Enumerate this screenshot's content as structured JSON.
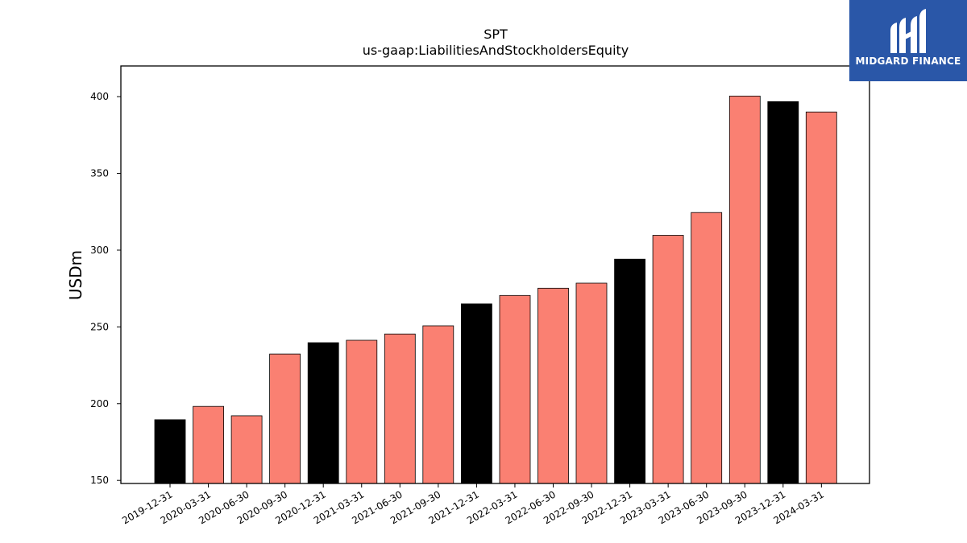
{
  "chart_data": {
    "type": "bar",
    "title": "SPT",
    "subtitle": "us-gaap:LiabilitiesAndStockholdersEquity",
    "xlabel": "",
    "ylabel": "USDm",
    "ylim": [
      148,
      420
    ],
    "yticks": [
      150,
      200,
      250,
      300,
      350,
      400
    ],
    "grid": false,
    "categories": [
      "2019-12-31",
      "2020-03-31",
      "2020-06-30",
      "2020-09-30",
      "2020-12-31",
      "2021-03-31",
      "2021-06-30",
      "2021-09-30",
      "2021-12-31",
      "2022-03-31",
      "2022-06-30",
      "2022-09-30",
      "2022-12-31",
      "2023-03-31",
      "2023-06-30",
      "2023-09-30",
      "2023-12-31",
      "2024-03-31"
    ],
    "values": [
      189.5,
      198.2,
      192.1,
      232.3,
      239.7,
      241.3,
      245.4,
      250.7,
      265.0,
      270.5,
      275.2,
      278.5,
      294.1,
      309.7,
      324.5,
      400.4,
      396.8,
      390.0
    ],
    "bar_colors": [
      "#000000",
      "#fa8072",
      "#fa8072",
      "#fa8072",
      "#000000",
      "#fa8072",
      "#fa8072",
      "#fa8072",
      "#000000",
      "#fa8072",
      "#fa8072",
      "#fa8072",
      "#000000",
      "#fa8072",
      "#fa8072",
      "#fa8072",
      "#000000",
      "#fa8072"
    ]
  },
  "logo": {
    "text": "MIDGARD FINANCE",
    "icon": "midgard-logo-icon",
    "background": "#2a57a8"
  }
}
